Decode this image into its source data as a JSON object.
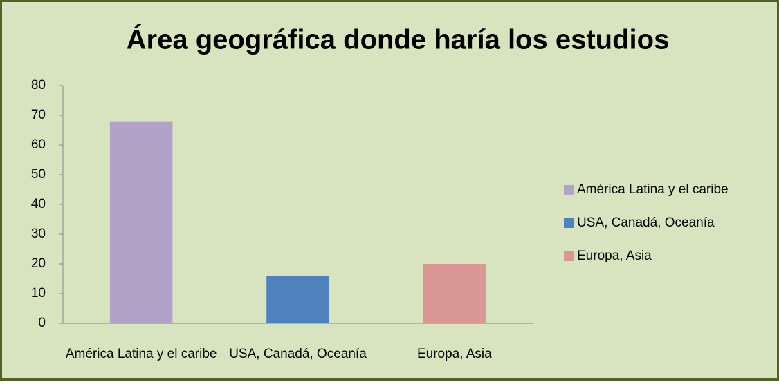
{
  "chart_data": {
    "type": "bar",
    "title": "Área geográfica donde haría los estudios",
    "categories": [
      "América Latina y el caribe",
      "USA, Canadá, Oceanía",
      "Europa, Asia"
    ],
    "values": [
      68,
      16,
      20
    ],
    "colors": [
      "#b3a2c7",
      "#4f81bd",
      "#d99694"
    ],
    "ylim": [
      0,
      80
    ],
    "yticks": [
      0,
      10,
      20,
      30,
      40,
      50,
      60,
      70,
      80
    ],
    "grid": false,
    "legend": "right"
  }
}
